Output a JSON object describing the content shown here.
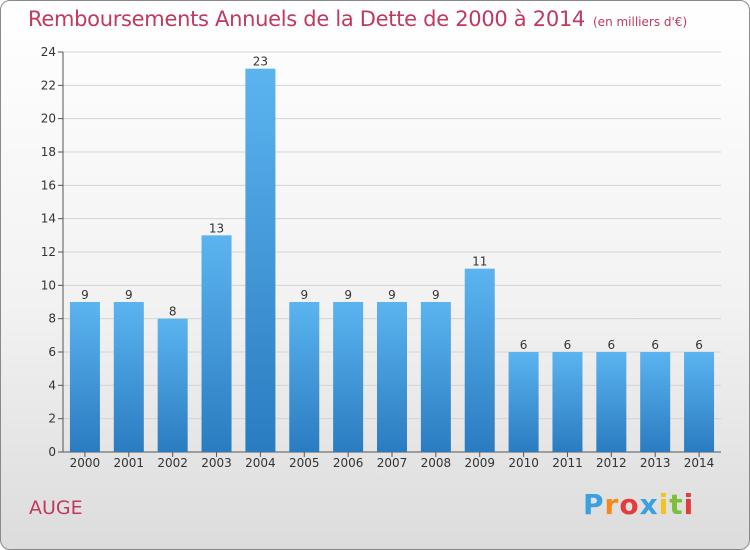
{
  "chart_data": {
    "type": "bar",
    "title": "Remboursements Annuels de la Dette de 2000 à 2014",
    "subtitle": "(en milliers d'€)",
    "categories": [
      "2000",
      "2001",
      "2002",
      "2003",
      "2004",
      "2005",
      "2006",
      "2007",
      "2008",
      "2009",
      "2010",
      "2011",
      "2012",
      "2013",
      "2014"
    ],
    "values": [
      9,
      9,
      8,
      13,
      23,
      9,
      9,
      9,
      9,
      11,
      6,
      6,
      6,
      6,
      6
    ],
    "ylim": [
      0,
      24
    ],
    "yticks": [
      0,
      2,
      4,
      6,
      8,
      10,
      12,
      14,
      16,
      18,
      20,
      22,
      24
    ],
    "grid": true,
    "bar_color": "#4a9ee0",
    "xlabel": "",
    "ylabel": ""
  },
  "footer": {
    "place": "AUGE",
    "brand_letters": [
      "P",
      "r",
      "o",
      "x",
      "i",
      "t",
      "i"
    ],
    "brand_colors": [
      "#3aa0e0",
      "#f28a1e",
      "#e23c3c",
      "#3aa0e0",
      "#f2c21e",
      "#7bbf3a",
      "#e23c3c"
    ]
  }
}
